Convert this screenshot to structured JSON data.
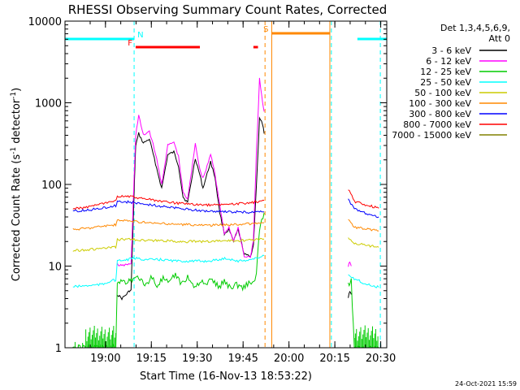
{
  "chart_data": {
    "type": "line",
    "title": "RHESSI Observing Summary Count Rates, Corrected",
    "xlabel": "Start Time (16-Nov-13 18:53:22)",
    "ylabel_main": "Corrected Count Rate (s",
    "ylabel_sup1": "-1",
    "ylabel_mid": " detector",
    "ylabel_sup2": "-1",
    "ylabel_end": ")",
    "yscale": "log",
    "ylim": [
      1,
      10000
    ],
    "xlim_min": [
      -6.6,
      98.6
    ],
    "x_unit": "minutes after 18:53:22 (axis ticks show clock time)",
    "x_ticks": [
      {
        "at": 6.63,
        "label": "19:00"
      },
      {
        "at": 21.63,
        "label": "19:15"
      },
      {
        "at": 36.63,
        "label": "19:30"
      },
      {
        "at": 51.63,
        "label": "19:45"
      },
      {
        "at": 66.63,
        "label": "20:00"
      },
      {
        "at": 81.63,
        "label": "20:15"
      },
      {
        "at": 96.63,
        "label": "20:30"
      }
    ],
    "y_ticks": [
      {
        "at": 1,
        "label": "1"
      },
      {
        "at": 10,
        "label": "10"
      },
      {
        "at": 100,
        "label": "100"
      },
      {
        "at": 1000,
        "label": "1000"
      },
      {
        "at": 10000,
        "label": "10000"
      }
    ],
    "legend_header": [
      "Det 1,3,4,5,6,9,",
      "Att 0"
    ],
    "legend_position": "right",
    "series": [
      {
        "name": "3 - 6 keV",
        "color": "#000000",
        "points": [
          [
            10.5,
            4.5
          ],
          [
            12.0,
            4.0
          ],
          [
            13.5,
            4.5
          ],
          [
            14.5,
            5.0
          ],
          [
            15.0,
            5.0
          ],
          [
            16.5,
            300
          ],
          [
            17.5,
            420
          ],
          [
            19.0,
            320
          ],
          [
            21.0,
            360
          ],
          [
            23.0,
            180
          ],
          [
            25.0,
            90
          ],
          [
            27.0,
            230
          ],
          [
            29.0,
            250
          ],
          [
            30.5,
            170
          ],
          [
            32.0,
            70
          ],
          [
            33.5,
            60
          ],
          [
            36.0,
            210
          ],
          [
            37.5,
            130
          ],
          [
            38.5,
            90
          ],
          [
            39.5,
            120
          ],
          [
            41.0,
            190
          ],
          [
            42.5,
            120
          ],
          [
            44.0,
            45
          ],
          [
            45.5,
            25
          ],
          [
            47.0,
            28
          ],
          [
            48.5,
            20
          ],
          [
            50.0,
            28
          ],
          [
            52.0,
            14
          ],
          [
            54.0,
            13
          ],
          [
            55.0,
            18
          ],
          [
            56.0,
            100
          ],
          [
            57.0,
            640
          ],
          [
            58.0,
            550
          ],
          [
            58.5,
            420
          ]
        ],
        "gap_points": [
          [
            86.0,
            4.0
          ],
          [
            86.5,
            5.0
          ],
          [
            87.0,
            4.5
          ]
        ]
      },
      {
        "name": "6 - 12 keV",
        "color": "#ff00ff",
        "points": [
          [
            10.5,
            10.5
          ],
          [
            12.0,
            10.0
          ],
          [
            13.5,
            10.5
          ],
          [
            15.0,
            10.5
          ],
          [
            16.5,
            400
          ],
          [
            17.5,
            700
          ],
          [
            19.0,
            400
          ],
          [
            21.0,
            450
          ],
          [
            23.0,
            240
          ],
          [
            25.0,
            100
          ],
          [
            27.0,
            300
          ],
          [
            29.0,
            330
          ],
          [
            30.5,
            220
          ],
          [
            32.0,
            80
          ],
          [
            33.5,
            65
          ],
          [
            36.0,
            320
          ],
          [
            37.5,
            150
          ],
          [
            38.5,
            120
          ],
          [
            39.5,
            150
          ],
          [
            41.0,
            240
          ],
          [
            42.5,
            130
          ],
          [
            44.0,
            55
          ],
          [
            45.5,
            25
          ],
          [
            47.0,
            30
          ],
          [
            48.5,
            20
          ],
          [
            50.0,
            30
          ],
          [
            52.0,
            13
          ],
          [
            54.0,
            13
          ],
          [
            55.0,
            20
          ],
          [
            56.0,
            250
          ],
          [
            57.0,
            1950
          ],
          [
            58.0,
            1000
          ],
          [
            58.5,
            780
          ]
        ],
        "gap_points": [
          [
            86.0,
            10.0
          ],
          [
            86.5,
            11.0
          ],
          [
            87.0,
            10.0
          ]
        ]
      },
      {
        "name": "12 - 25 keV",
        "color": "#00cc00",
        "points": [
          [
            -4.0,
            1.0
          ],
          [
            3.0,
            1.0
          ],
          [
            6.0,
            1.0
          ],
          [
            10.0,
            1.0
          ],
          [
            10.5,
            6.5
          ],
          [
            14.0,
            6.5
          ],
          [
            15.0,
            7.0
          ],
          [
            16.0,
            6.8
          ],
          [
            17.5,
            7.5
          ],
          [
            19.5,
            5.5
          ],
          [
            21.5,
            7.5
          ],
          [
            23.5,
            5.8
          ],
          [
            25.5,
            7.0
          ],
          [
            27.5,
            6.0
          ],
          [
            29.5,
            8.0
          ],
          [
            31.5,
            6.0
          ],
          [
            33.5,
            7.5
          ],
          [
            35.5,
            5.5
          ],
          [
            37.5,
            6.5
          ],
          [
            39.5,
            5.8
          ],
          [
            41.5,
            7.0
          ],
          [
            43.5,
            5.5
          ],
          [
            45.5,
            6.5
          ],
          [
            47.5,
            5.5
          ],
          [
            49.5,
            6.0
          ],
          [
            51.5,
            5.5
          ],
          [
            53.5,
            6.2
          ],
          [
            55.5,
            6.5
          ],
          [
            56.0,
            8.0
          ],
          [
            57.0,
            28.0
          ],
          [
            58.5,
            45.0
          ]
        ],
        "gap_points": [
          [
            86.0,
            6.0
          ],
          [
            87.0,
            6.5
          ],
          [
            88.0,
            1.0
          ],
          [
            92.0,
            1.0
          ],
          [
            96.0,
            1.0
          ]
        ]
      },
      {
        "name": "25 - 50 keV",
        "color": "#00ffff",
        "points": [
          [
            -4.0,
            5.6
          ],
          [
            2.0,
            5.8
          ],
          [
            6.0,
            6.0
          ],
          [
            9.0,
            6.8
          ],
          [
            10.0,
            6.5
          ],
          [
            10.5,
            11.5
          ],
          [
            14.0,
            12.0
          ],
          [
            16.0,
            12.5
          ],
          [
            20.0,
            12.0
          ],
          [
            25.0,
            12.0
          ],
          [
            30.0,
            11.5
          ],
          [
            35.0,
            11.5
          ],
          [
            40.0,
            11.5
          ],
          [
            44.0,
            12.0
          ],
          [
            46.0,
            12.5
          ],
          [
            50.0,
            11.5
          ],
          [
            54.0,
            12.0
          ],
          [
            56.0,
            12.5
          ],
          [
            58.5,
            13.5
          ]
        ],
        "gap_points": [
          [
            86.0,
            8.0
          ],
          [
            88.0,
            7.0
          ],
          [
            92.0,
            6.0
          ],
          [
            96.0,
            5.5
          ]
        ]
      },
      {
        "name": "50 - 100 keV",
        "color": "#cccc00",
        "points": [
          [
            -4.0,
            15.5
          ],
          [
            2.0,
            16.0
          ],
          [
            6.0,
            16.5
          ],
          [
            10.0,
            17.0
          ],
          [
            10.5,
            21.0
          ],
          [
            14.0,
            21.5
          ],
          [
            20.0,
            20.5
          ],
          [
            25.0,
            20.5
          ],
          [
            30.0,
            20.0
          ],
          [
            35.0,
            20.0
          ],
          [
            40.0,
            20.0
          ],
          [
            45.0,
            20.5
          ],
          [
            50.0,
            20.5
          ],
          [
            55.0,
            21.0
          ],
          [
            58.5,
            21.5
          ]
        ],
        "gap_points": [
          [
            86.0,
            22.0
          ],
          [
            88.0,
            19.0
          ],
          [
            92.0,
            18.0
          ],
          [
            96.0,
            17.0
          ]
        ]
      },
      {
        "name": "100 - 300 keV",
        "color": "#ff8800",
        "points": [
          [
            -4.0,
            28.0
          ],
          [
            2.0,
            29.5
          ],
          [
            6.0,
            31.0
          ],
          [
            10.0,
            32.0
          ],
          [
            10.5,
            36.0
          ],
          [
            14.0,
            36.0
          ],
          [
            20.0,
            34.0
          ],
          [
            25.0,
            33.0
          ],
          [
            30.0,
            32.5
          ],
          [
            35.0,
            32.0
          ],
          [
            40.0,
            31.5
          ],
          [
            45.0,
            32.0
          ],
          [
            50.0,
            32.5
          ],
          [
            55.0,
            33.0
          ],
          [
            58.5,
            34.0
          ]
        ],
        "gap_points": [
          [
            86.0,
            38.0
          ],
          [
            88.0,
            30.0
          ],
          [
            92.0,
            28.5
          ],
          [
            96.0,
            27.0
          ]
        ]
      },
      {
        "name": "300 - 800 keV",
        "color": "#0000ff",
        "points": [
          [
            -4.0,
            47.0
          ],
          [
            2.0,
            49.0
          ],
          [
            6.0,
            52.0
          ],
          [
            10.0,
            55.0
          ],
          [
            10.5,
            62.0
          ],
          [
            14.0,
            61.0
          ],
          [
            20.0,
            57.0
          ],
          [
            25.0,
            54.0
          ],
          [
            30.0,
            51.0
          ],
          [
            35.0,
            49.0
          ],
          [
            40.0,
            47.0
          ],
          [
            45.0,
            46.5
          ],
          [
            50.0,
            46.0
          ],
          [
            55.0,
            45.5
          ],
          [
            58.5,
            46.0
          ]
        ],
        "gap_points": [
          [
            86.0,
            66.0
          ],
          [
            88.0,
            50.0
          ],
          [
            92.0,
            44.0
          ],
          [
            96.0,
            40.0
          ]
        ]
      },
      {
        "name": "800 - 7000 keV",
        "color": "#ff0000",
        "points": [
          [
            -4.0,
            50.0
          ],
          [
            2.0,
            54.0
          ],
          [
            6.0,
            58.0
          ],
          [
            10.0,
            62.0
          ],
          [
            10.5,
            72.0
          ],
          [
            14.0,
            72.0
          ],
          [
            20.0,
            66.0
          ],
          [
            25.0,
            62.0
          ],
          [
            30.0,
            59.0
          ],
          [
            35.0,
            57.0
          ],
          [
            40.0,
            56.0
          ],
          [
            45.0,
            57.0
          ],
          [
            50.0,
            58.0
          ],
          [
            55.0,
            60.0
          ],
          [
            58.5,
            64.0
          ]
        ],
        "gap_points": [
          [
            86.0,
            88.0
          ],
          [
            88.0,
            62.0
          ],
          [
            92.0,
            56.0
          ],
          [
            96.0,
            51.0
          ]
        ]
      },
      {
        "name": "7000 - 15000 keV",
        "color": "#808000",
        "points": [],
        "gap_points": []
      }
    ],
    "flag_bars": [
      {
        "label": "N",
        "color": "#00ffff",
        "segments": [
          [
            -6.6,
            16.0
          ],
          [
            89.0,
            98.6
          ]
        ]
      },
      {
        "label": "F",
        "color": "#ff0000",
        "segments": [
          [
            16.5,
            37.5
          ],
          [
            55.0,
            56.5
          ]
        ]
      },
      {
        "label": "S",
        "color": "#ff8800",
        "segments": [
          [
            61.0,
            80.0
          ]
        ]
      }
    ],
    "vertical_markers": [
      {
        "at": 16.0,
        "color": "#00ffff",
        "style": "dashed"
      },
      {
        "at": 58.8,
        "color": "#ff8800",
        "style": "dashed"
      },
      {
        "at": 61.0,
        "color": "#ff8800",
        "style": "solid"
      },
      {
        "at": 80.0,
        "color": "#ff8800",
        "style": "solid"
      },
      {
        "at": 80.5,
        "color": "#00ffff",
        "style": "dashed"
      },
      {
        "at": 96.5,
        "color": "#00ffff",
        "style": "dashed"
      }
    ],
    "timestamp": "24-Oct-2021 15:59"
  }
}
